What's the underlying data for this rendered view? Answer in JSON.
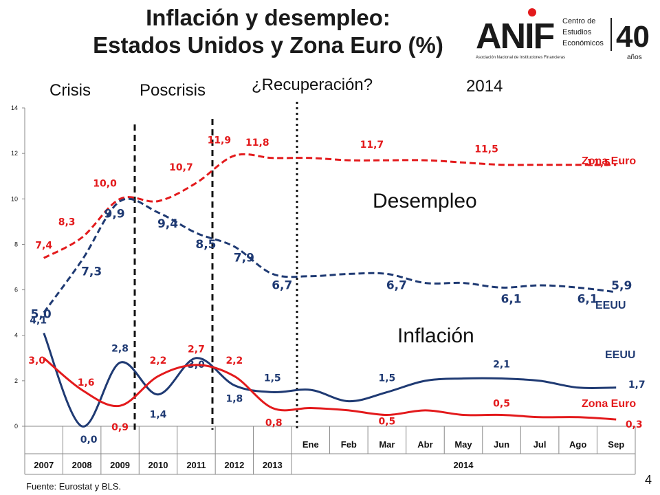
{
  "header": {
    "title_line1": "Inflación y desempleo:",
    "title_line2": "Estados Unidos y Zona Euro (%)"
  },
  "logo": {
    "mark": "ANIF",
    "org_name": "Asociación Nacional de Instituciones Financieras",
    "center_line1": "Centro de",
    "center_line2": "Estudios",
    "center_line3": "Económicos",
    "anniversary": "40",
    "anniversary_unit": "años"
  },
  "periods": {
    "crisis": "Crisis",
    "poscrisis": "Poscrisis",
    "recuperacion": "¿Recuperación?",
    "year": "2014"
  },
  "labels": {
    "desempleo": "Desempleo",
    "inflacion": "Inflación",
    "zona_euro_unemp": "Zona Euro",
    "eeuu_unemp": "EEUU",
    "eeuu_infl": "EEUU",
    "zona_euro_infl": "Zona Euro"
  },
  "footer": {
    "source": "Fuente: Eurostat y  BLS.",
    "page": "4"
  },
  "colors": {
    "euro": "#e31a1c",
    "usa": "#1f3a73"
  },
  "chart_data": {
    "type": "line",
    "ylim": [
      0,
      14
    ],
    "yticks": [
      "0",
      "2",
      "4",
      "6",
      "8",
      "10",
      "12",
      "14"
    ],
    "annual_categories": [
      "2007",
      "2008",
      "2009",
      "2010",
      "2011",
      "2012",
      "2013"
    ],
    "monthly_categories": [
      "Ene",
      "Feb",
      "Mar",
      "Abr",
      "May",
      "Jun",
      "Jul",
      "Ago",
      "Sep"
    ],
    "monthly_year_label": "2014",
    "series": [
      {
        "name": "Zona Euro",
        "group": "Desempleo",
        "style": "dashed",
        "annual": [
          7.4,
          8.3,
          10.0,
          9.9,
          10.7,
          11.9,
          11.8
        ],
        "monthly": [
          11.8,
          11.7,
          11.7,
          11.7,
          11.6,
          11.5,
          11.5,
          11.5,
          11.5
        ],
        "labels": [
          {
            "where": "2007",
            "text": "7,4"
          },
          {
            "where": "2008",
            "text": "8,3"
          },
          {
            "where": "2009",
            "text": "10,0"
          },
          {
            "where": "2011",
            "text": "10,7"
          },
          {
            "where": "2012",
            "text": "11,9"
          },
          {
            "where": "2013",
            "text": "11,8"
          },
          {
            "where": "Mar",
            "text": "11,7"
          },
          {
            "where": "Jun",
            "text": "11,5"
          },
          {
            "where": "Ago",
            "text": "11,5"
          }
        ]
      },
      {
        "name": "EEUU",
        "group": "Desempleo",
        "style": "dashed",
        "annual": [
          5.0,
          7.3,
          9.9,
          9.4,
          8.5,
          7.9,
          6.7
        ],
        "monthly": [
          6.6,
          6.7,
          6.7,
          6.3,
          6.3,
          6.1,
          6.2,
          6.1,
          5.9
        ],
        "labels": [
          {
            "where": "2007",
            "text": "5,0"
          },
          {
            "where": "2008",
            "text": "7,3"
          },
          {
            "where": "2009",
            "text": "9,9"
          },
          {
            "where": "2010",
            "text": "9,4"
          },
          {
            "where": "2011",
            "text": "8,5"
          },
          {
            "where": "2012",
            "text": "7,9"
          },
          {
            "where": "2013",
            "text": "6,7"
          },
          {
            "where": "Mar",
            "text": "6,7"
          },
          {
            "where": "Jun",
            "text": "6,1"
          },
          {
            "where": "Ago",
            "text": "6,1"
          },
          {
            "where": "Sep",
            "text": "5,9"
          }
        ]
      },
      {
        "name": "EEUU",
        "group": "Inflación",
        "style": "solid",
        "annual": [
          4.1,
          0.0,
          2.8,
          1.4,
          3.0,
          1.8,
          1.5
        ],
        "monthly": [
          1.6,
          1.1,
          1.5,
          2.0,
          2.1,
          2.1,
          2.0,
          1.7,
          1.7
        ],
        "labels": [
          {
            "where": "2007",
            "text": "4,1"
          },
          {
            "where": "2008",
            "text": "0,0"
          },
          {
            "where": "2009",
            "text": "2,8"
          },
          {
            "where": "2010",
            "text": "1,4"
          },
          {
            "where": "2011",
            "text": "3,0"
          },
          {
            "where": "2012",
            "text": "1,8"
          },
          {
            "where": "2013",
            "text": "1,5"
          },
          {
            "where": "Mar",
            "text": "1,5"
          },
          {
            "where": "Jun",
            "text": "2,1"
          },
          {
            "where": "Sep",
            "text": "1,7"
          }
        ]
      },
      {
        "name": "Zona Euro",
        "group": "Inflación",
        "style": "solid",
        "annual": [
          3.0,
          1.6,
          0.9,
          2.2,
          2.7,
          2.2,
          0.8
        ],
        "monthly": [
          0.8,
          0.7,
          0.5,
          0.7,
          0.5,
          0.5,
          0.4,
          0.4,
          0.3
        ],
        "labels": [
          {
            "where": "2007",
            "text": "3,0"
          },
          {
            "where": "2008",
            "text": "1,6"
          },
          {
            "where": "2009",
            "text": "0,9"
          },
          {
            "where": "2010",
            "text": "2,2"
          },
          {
            "where": "2011",
            "text": "2,7"
          },
          {
            "where": "2012",
            "text": "2,2"
          },
          {
            "where": "2013",
            "text": "0,8"
          },
          {
            "where": "Mar",
            "text": "0,5"
          },
          {
            "where": "Jun",
            "text": "0,5"
          },
          {
            "where": "Sep",
            "text": "0,3"
          }
        ]
      }
    ]
  }
}
